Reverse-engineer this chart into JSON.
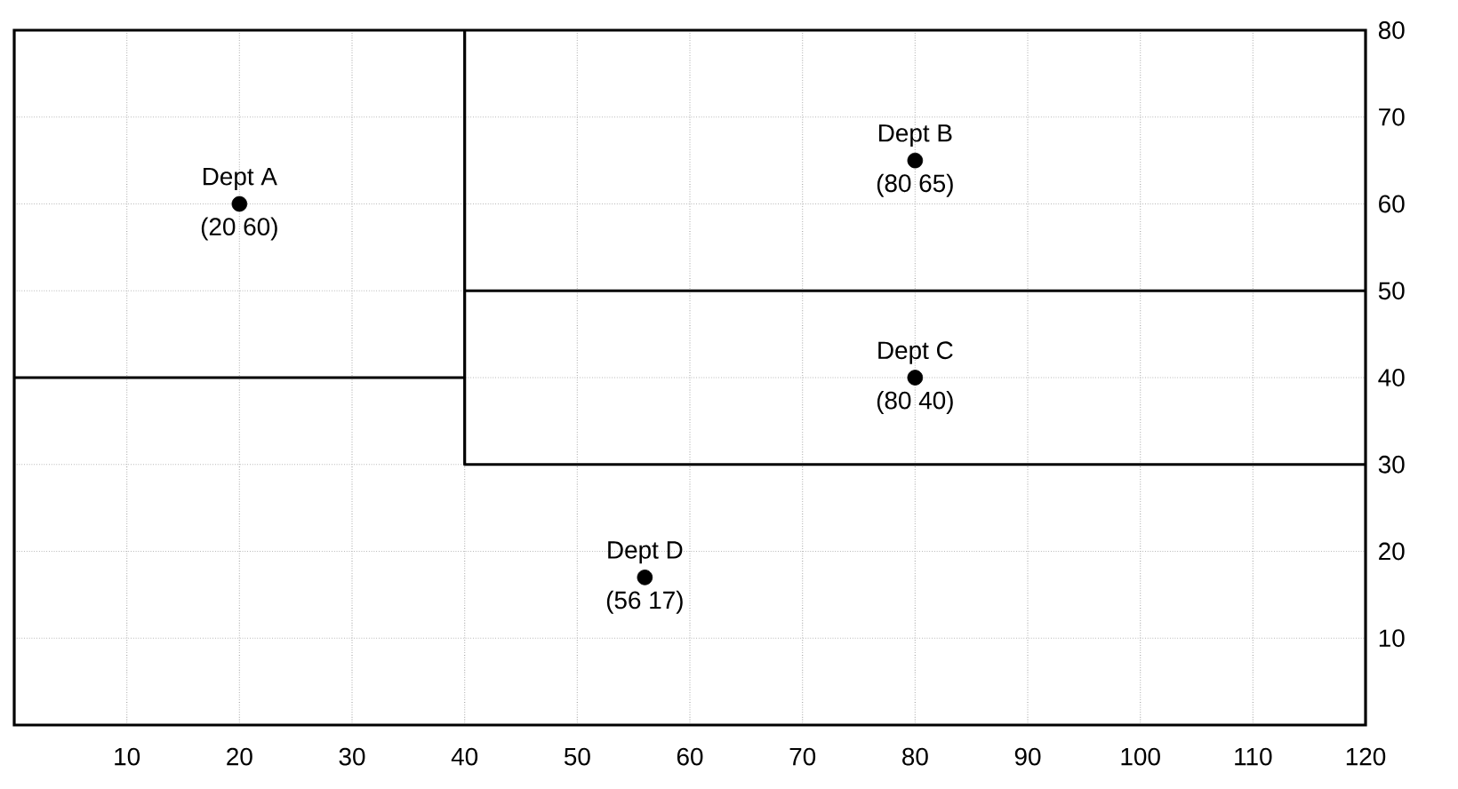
{
  "chart_data": {
    "type": "scatter",
    "xlim": [
      0,
      120
    ],
    "ylim": [
      0,
      80
    ],
    "xticks": [
      10,
      20,
      30,
      40,
      50,
      60,
      70,
      80,
      90,
      100,
      110,
      120
    ],
    "yticks": [
      10,
      20,
      30,
      40,
      50,
      60,
      70,
      80
    ],
    "grid": true,
    "series": [
      {
        "marker": "circle",
        "color": "#000000",
        "x": [
          20,
          80,
          80,
          56
        ],
        "values": [
          60,
          65,
          40,
          17
        ]
      },
      {
        "type": "line",
        "color": "#000000",
        "x": [
          40,
          40,
          120
        ],
        "values": [
          80,
          30,
          30
        ],
        "marker": "none"
      },
      {
        "type": "line",
        "color": "#000000",
        "x": [
          0,
          40
        ],
        "values": [
          40,
          40
        ],
        "marker": "none"
      },
      {
        "type": "line",
        "color": "#000000",
        "x": [
          40,
          120
        ],
        "values": [
          50,
          50
        ],
        "marker": "none"
      }
    ],
    "annotations": [
      {
        "text": "Dept  A",
        "x": 20,
        "y": 60
      },
      {
        "text": "(20 60)",
        "x": 20,
        "y": 60
      },
      {
        "text": "Dept  B",
        "x": 80,
        "y": 65
      },
      {
        "text": "(80 65)",
        "x": 80,
        "y": 65
      },
      {
        "text": "Dept  C",
        "x": 80,
        "y": 40
      },
      {
        "text": "(80 40)",
        "x": 80,
        "y": 40
      },
      {
        "text": "Dept  D",
        "x": 56,
        "y": 17
      },
      {
        "text": "(56 17)",
        "x": 56,
        "y": 17
      }
    ]
  }
}
